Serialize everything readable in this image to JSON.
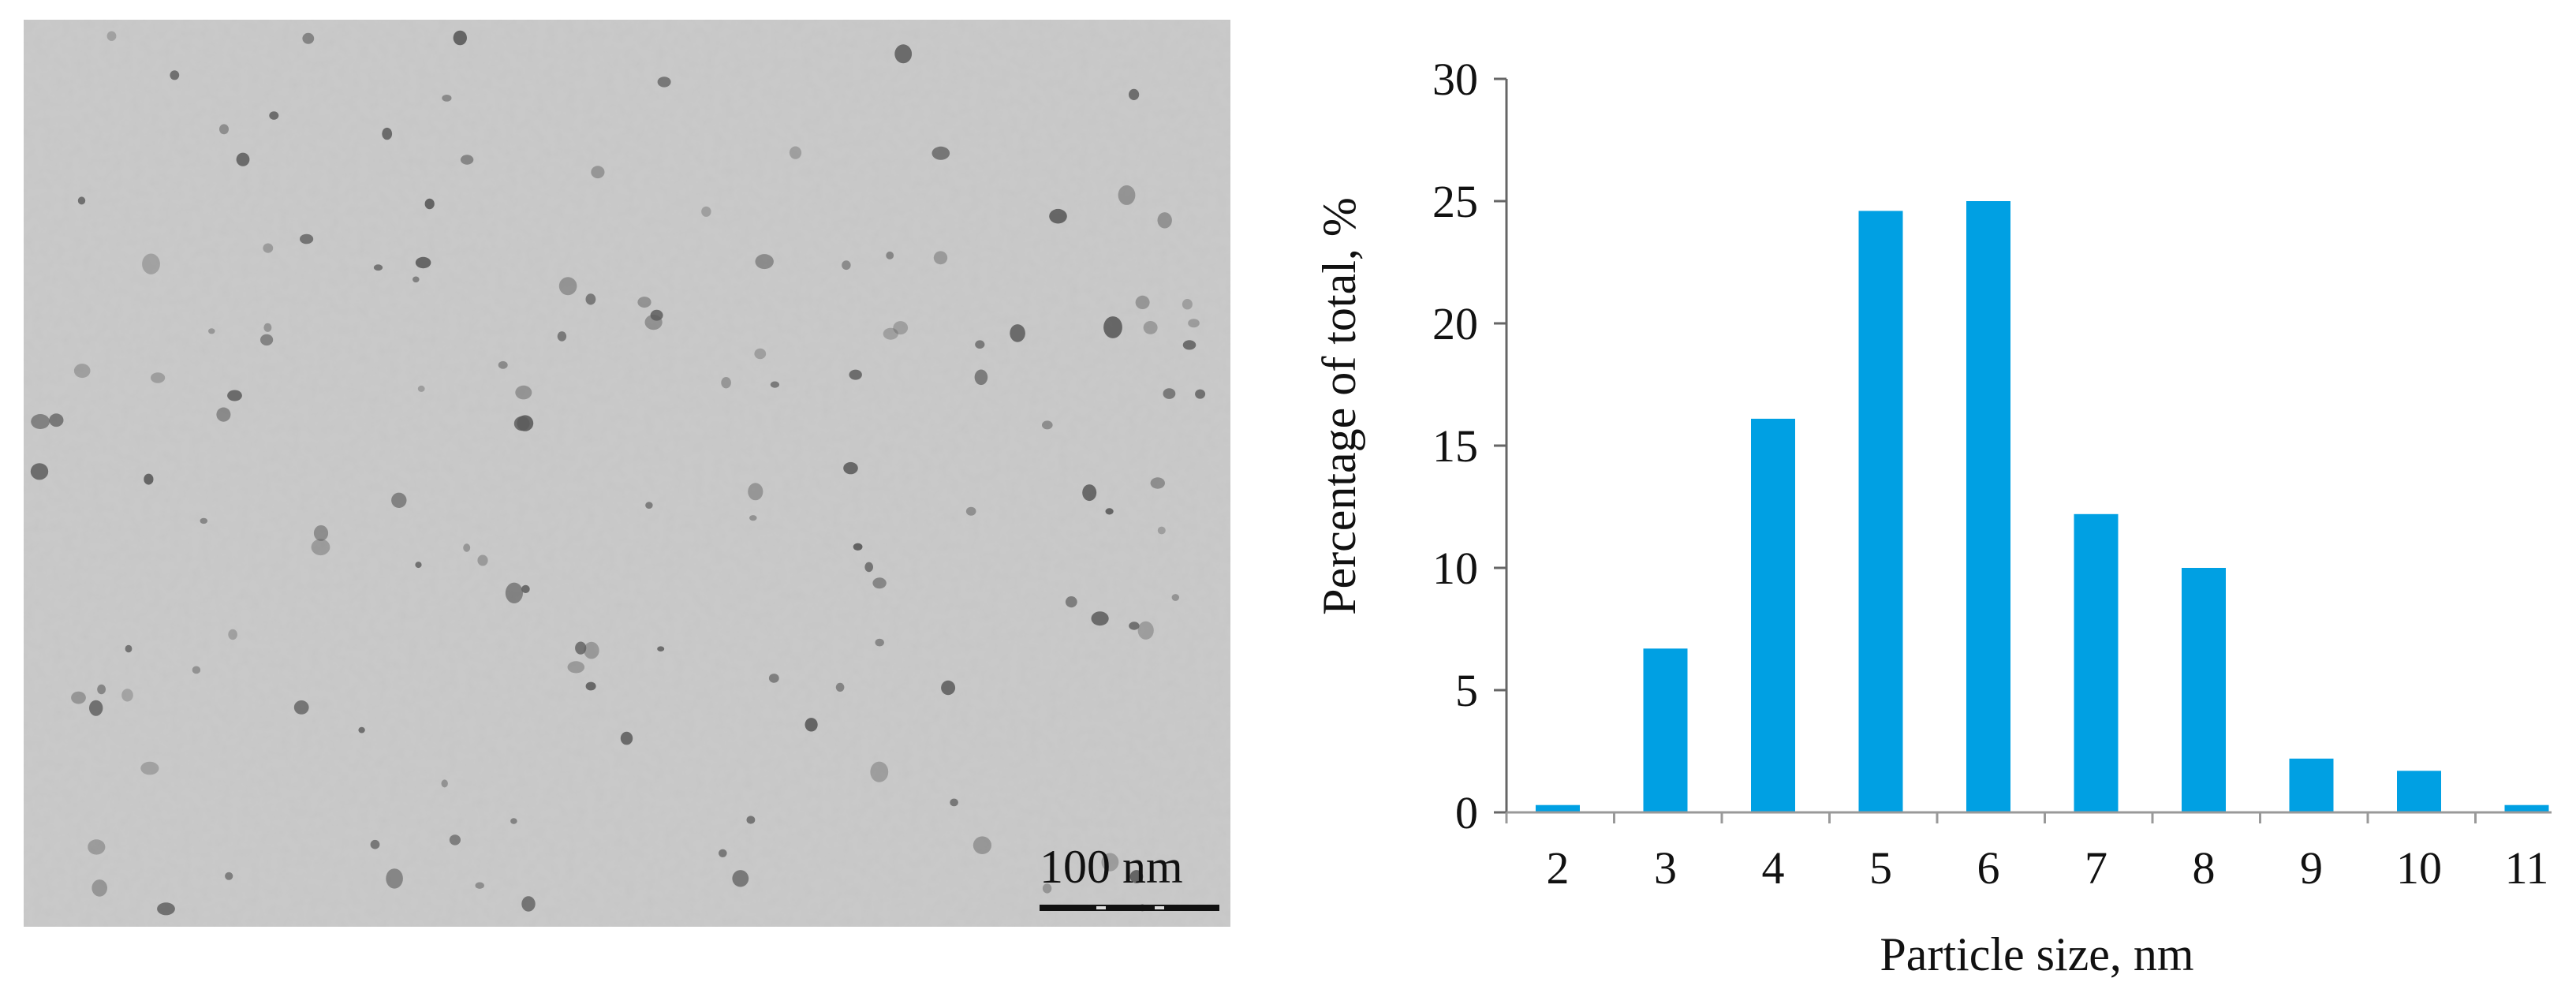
{
  "micrograph": {
    "scale_bar_label": "100 nm"
  },
  "chart_data": {
    "type": "bar",
    "categories": [
      "2",
      "3",
      "4",
      "5",
      "6",
      "7",
      "8",
      "9",
      "10",
      "11"
    ],
    "values": [
      0.3,
      6.7,
      16.1,
      24.6,
      25.0,
      12.2,
      10.0,
      2.2,
      1.7,
      0.3
    ],
    "xlabel": "Particle size, nm",
    "ylabel": "Percentage of total, %",
    "ylim": [
      0,
      30
    ],
    "yticks": [
      0,
      5,
      10,
      15,
      20,
      25,
      30
    ],
    "grid": false,
    "legend": "none",
    "bar_color": "#00a0e3"
  }
}
